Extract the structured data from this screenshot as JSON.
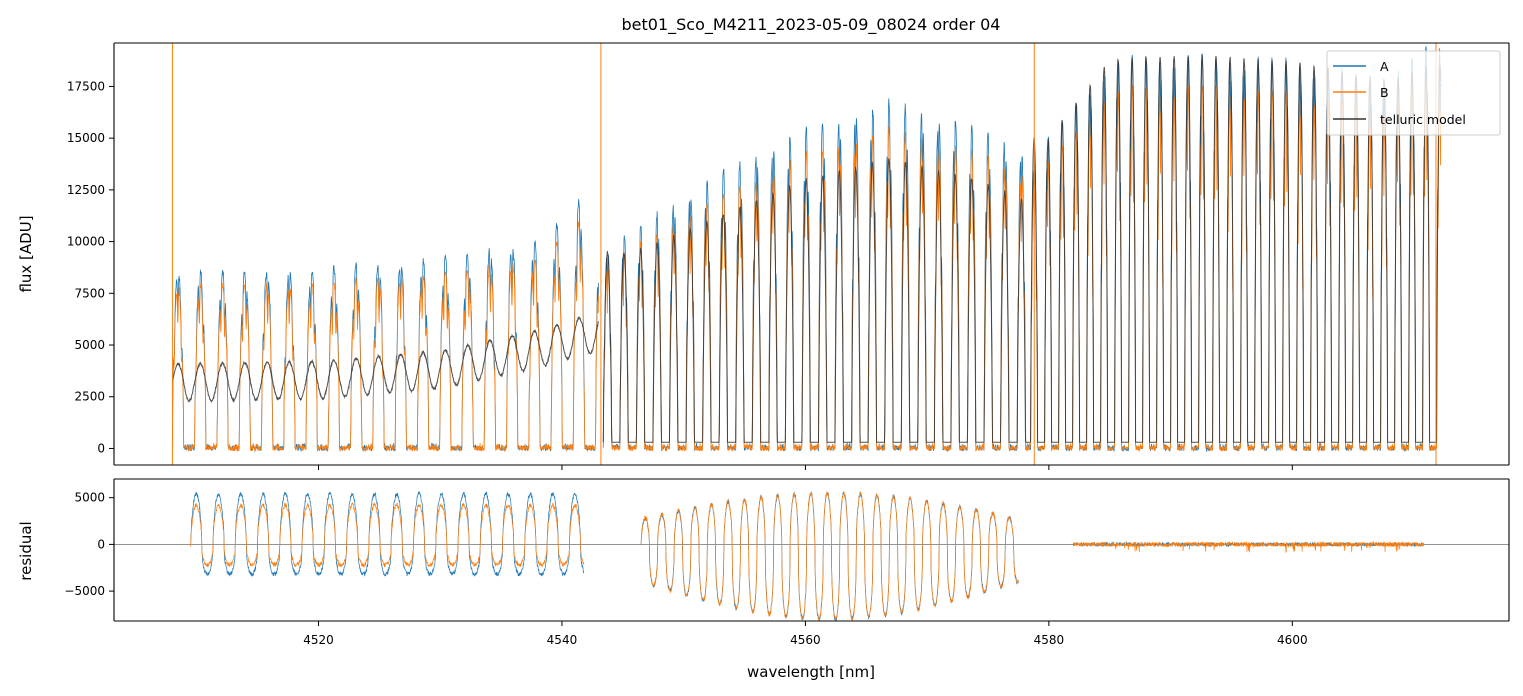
{
  "chart_data": [
    {
      "type": "line",
      "panel": "top",
      "title": "bet01_Sco_M4211_2023-05-09_08024  order 04",
      "xlabel": "",
      "ylabel": "flux [ADU]",
      "xlim": [
        4503.2,
        4617.8
      ],
      "ylim": [
        -800,
        19600
      ],
      "yticks": [
        0,
        2500,
        5000,
        7500,
        10000,
        12500,
        15000,
        17500
      ],
      "ytick_labels": [
        "0",
        "2500",
        "5000",
        "7500",
        "10000",
        "12500",
        "15000",
        "17500"
      ],
      "xticks": [
        4520,
        4540,
        4560,
        4580,
        4600
      ],
      "legend_position": "top-right",
      "series": [
        {
          "name": "A",
          "color": "#1f77b4"
        },
        {
          "name": "B",
          "color": "#ff7f0e"
        },
        {
          "name": "telluric model",
          "color": "#333333"
        }
      ],
      "segments": [
        {
          "x_range": [
            4508.0,
            4543.0
          ],
          "peak_envelope": [
            [
              4508,
              8500
            ],
            [
              4520,
              8600
            ],
            [
              4530,
              9200
            ],
            [
              4538,
              10000
            ],
            [
              4542,
              12200
            ]
          ],
          "telluric_level": [
            [
              4510,
              3200
            ],
            [
              4520,
              3300
            ],
            [
              4530,
              3800
            ],
            [
              4538,
              4800
            ],
            [
              4542,
              5500
            ]
          ]
        },
        {
          "x_range": [
            4543.4,
            4578.5
          ],
          "peak_envelope": [
            [
              4543.4,
              9500
            ],
            [
              4552,
              13000
            ],
            [
              4560,
              15500
            ],
            [
              4567,
              16800
            ],
            [
              4574,
              15500
            ],
            [
              4578,
              14500
            ]
          ],
          "telluric_level": [
            [
              4546,
              9500
            ],
            [
              4552,
              11000
            ],
            [
              4560,
              13000
            ],
            [
              4567,
              14000
            ],
            [
              4574,
              13000
            ],
            [
              4578,
              12000
            ]
          ]
        },
        {
          "x_range": [
            4578.5,
            4612.2
          ],
          "peak_envelope": [
            [
              4578.5,
              14000
            ],
            [
              4585,
              18800
            ],
            [
              4592,
              19000
            ],
            [
              4600,
              18700
            ],
            [
              4608,
              17800
            ],
            [
              4611,
              19500
            ]
          ],
          "telluric_level": [
            [
              4580,
              15000
            ],
            [
              4585,
              18800
            ],
            [
              4592,
              19000
            ],
            [
              4600,
              18700
            ],
            [
              4608,
              17800
            ],
            [
              4611,
              18500
            ]
          ]
        }
      ]
    },
    {
      "type": "line",
      "panel": "bottom",
      "title": "",
      "xlabel": "wavelength [nm]",
      "ylabel": "residual",
      "xlim": [
        4503.2,
        4617.8
      ],
      "ylim": [
        -8200,
        7000
      ],
      "yticks": [
        -5000,
        0,
        5000
      ],
      "ytick_labels": [
        "−5000",
        "0",
        "5000"
      ],
      "xticks": [
        4520,
        4540,
        4560,
        4580,
        4600
      ],
      "xtick_labels": [
        "4520",
        "4540",
        "4560",
        "4580",
        "4600"
      ],
      "reference_line_y": 0,
      "segments": [
        {
          "x_range": [
            4509.5,
            4541.8
          ],
          "A_amplitude": [
            5400,
            -3200
          ],
          "B_amplitude": [
            4200,
            -2200
          ]
        },
        {
          "x_range": [
            4546.5,
            4577.5
          ],
          "A_amplitude": [
            5500,
            -8000
          ],
          "B_amplitude": [
            5500,
            -8000
          ]
        },
        {
          "x_range": [
            4582.0,
            4610.8
          ],
          "A_amplitude": [
            300,
            -300
          ],
          "B_amplitude": [
            500,
            -800
          ]
        }
      ]
    }
  ]
}
